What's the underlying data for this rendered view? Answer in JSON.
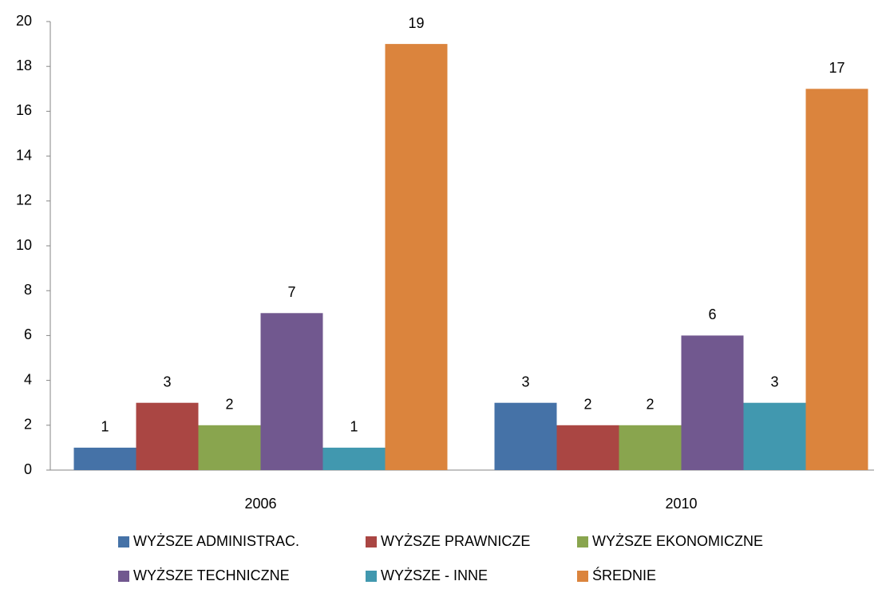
{
  "chart_data": {
    "type": "bar",
    "categories": [
      "2006",
      "2010"
    ],
    "series": [
      {
        "name": "WYŻSZE ADMINISTRAC.",
        "color": "#4572a7",
        "values": [
          1,
          3
        ]
      },
      {
        "name": "WYŻSZE PRAWNICZE",
        "color": "#aa4643",
        "values": [
          3,
          2
        ]
      },
      {
        "name": "WYŻSZE EKONOMICZNE",
        "color": "#89a54e",
        "values": [
          2,
          2
        ]
      },
      {
        "name": "WYŻSZE TECHNICZNE",
        "color": "#71588f",
        "values": [
          7,
          6
        ]
      },
      {
        "name": "WYŻSZE - INNE",
        "color": "#4198af",
        "values": [
          1,
          3
        ]
      },
      {
        "name": "ŚREDNIE",
        "color": "#db843d",
        "values": [
          19,
          17
        ]
      }
    ],
    "ylim": [
      0,
      20
    ],
    "yticks": [
      0,
      2,
      4,
      6,
      8,
      10,
      12,
      14,
      16,
      18,
      20
    ],
    "grid": false,
    "legend": "bottom"
  }
}
